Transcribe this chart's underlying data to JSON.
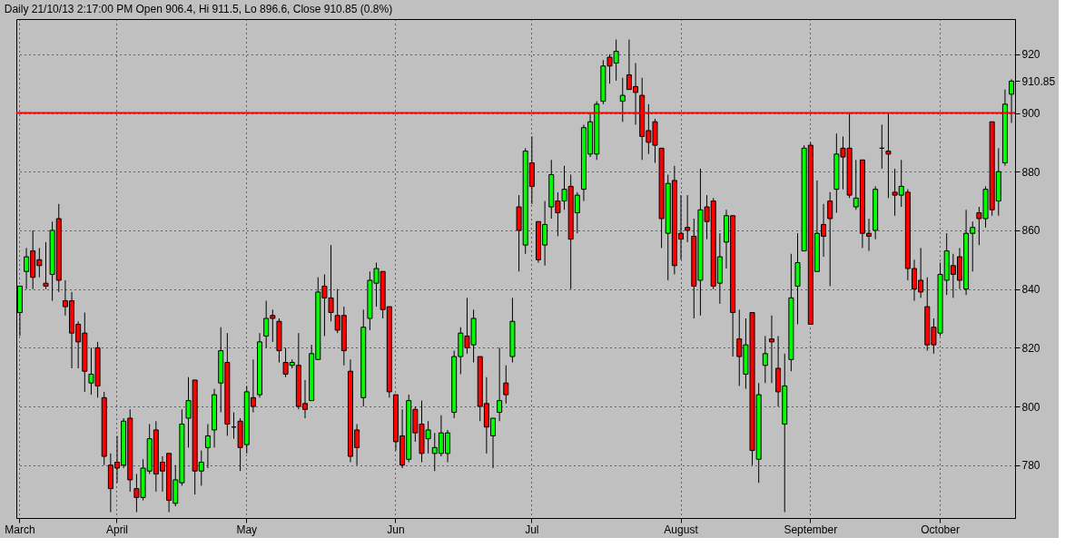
{
  "chart_data": {
    "type": "candlestick",
    "title": "Daily 21/10/13 2:17:00 PM Open 906.4, Hi 911.5, Lo 896.6, Close 910.85 (0.8%)",
    "categories": [
      "March",
      null,
      null,
      null,
      null,
      null,
      null,
      null,
      null,
      null,
      null,
      null,
      null,
      null,
      null,
      "April",
      null,
      null,
      null,
      null,
      null,
      null,
      null,
      null,
      null,
      null,
      null,
      null,
      null,
      null,
      null,
      null,
      null,
      null,
      null,
      "May",
      null,
      null,
      null,
      null,
      null,
      null,
      null,
      null,
      null,
      null,
      null,
      null,
      null,
      null,
      null,
      null,
      null,
      null,
      null,
      null,
      null,
      null,
      "Jun",
      null,
      null,
      null,
      null,
      null,
      null,
      null,
      null,
      null,
      null,
      null,
      null,
      null,
      null,
      null,
      null,
      null,
      null,
      null,
      null,
      "Jul",
      null,
      null,
      null,
      null,
      null,
      null,
      null,
      null,
      null,
      null,
      null,
      null,
      null,
      null,
      null,
      null,
      null,
      null,
      null,
      null,
      null,
      null,
      "August",
      null,
      null,
      null,
      null,
      null,
      null,
      null,
      null,
      null,
      null,
      null,
      null,
      null,
      null,
      null,
      null,
      null,
      null,
      null,
      "September",
      null,
      null,
      null,
      null,
      null,
      null,
      null,
      null,
      null,
      null,
      null,
      null,
      null,
      null,
      null,
      null,
      null,
      null,
      null,
      "October",
      null,
      null,
      null,
      null,
      null,
      null,
      null,
      null,
      null,
      null,
      null
    ],
    "ohlc": [
      [
        832,
        841,
        824,
        841
      ],
      [
        846,
        854,
        840,
        851
      ],
      [
        853,
        860,
        840,
        844
      ],
      [
        850,
        854,
        844,
        848
      ],
      [
        842,
        856,
        840,
        841
      ],
      [
        845,
        863,
        836,
        860
      ],
      [
        864,
        869,
        839,
        843
      ],
      [
        836,
        843,
        831,
        834
      ],
      [
        836,
        839,
        813,
        825
      ],
      [
        828,
        829,
        813,
        822
      ],
      [
        825,
        832,
        805,
        812
      ],
      [
        808,
        820,
        804,
        811
      ],
      [
        820,
        822,
        803,
        807
      ],
      [
        803,
        805,
        780,
        783
      ],
      [
        780,
        784,
        764,
        772
      ],
      [
        781,
        790,
        774,
        779
      ],
      [
        780,
        796,
        779,
        795
      ],
      [
        796,
        799,
        771,
        775
      ],
      [
        772,
        777,
        764,
        769
      ],
      [
        769,
        782,
        768,
        779
      ],
      [
        778,
        794,
        777,
        789
      ],
      [
        792,
        795,
        771,
        777
      ],
      [
        781,
        783,
        771,
        778
      ],
      [
        784,
        784,
        764,
        768
      ],
      [
        767,
        780,
        766,
        775
      ],
      [
        774,
        799,
        773,
        794
      ],
      [
        796,
        810,
        786,
        802
      ],
      [
        809,
        809,
        770,
        778
      ],
      [
        778,
        785,
        773,
        781
      ],
      [
        786,
        794,
        779,
        790
      ],
      [
        792,
        806,
        786,
        804
      ],
      [
        808,
        827,
        798,
        819
      ],
      [
        815,
        825,
        790,
        794
      ],
      [
        793,
        798,
        789,
        793
      ],
      [
        795,
        796,
        778,
        786
      ],
      [
        787,
        807,
        784,
        805
      ],
      [
        803,
        816,
        798,
        800
      ],
      [
        804,
        825,
        803,
        822
      ],
      [
        824,
        836,
        820,
        830
      ],
      [
        831,
        833,
        822,
        830
      ],
      [
        829,
        830,
        815,
        819
      ],
      [
        815,
        820,
        810,
        811
      ],
      [
        814,
        816,
        813,
        815
      ],
      [
        814,
        825,
        799,
        800
      ],
      [
        801,
        809,
        796,
        799
      ],
      [
        802,
        821,
        802,
        818
      ],
      [
        816,
        844,
        816,
        839
      ],
      [
        841,
        845,
        824,
        837
      ],
      [
        837,
        855,
        829,
        832
      ],
      [
        831,
        840,
        825,
        826
      ],
      [
        831,
        834,
        814,
        819
      ],
      [
        812,
        816,
        781,
        783
      ],
      [
        792,
        794,
        780,
        786
      ],
      [
        803,
        833,
        800,
        827
      ],
      [
        830,
        846,
        826,
        843
      ],
      [
        842,
        849,
        834,
        847
      ],
      [
        846,
        846,
        830,
        833
      ],
      [
        834,
        834,
        803,
        805
      ],
      [
        804,
        804,
        785,
        788
      ],
      [
        790,
        799,
        779,
        780
      ],
      [
        782,
        804,
        781,
        802
      ],
      [
        799,
        800,
        788,
        791
      ],
      [
        794,
        802,
        781,
        784
      ],
      [
        789,
        795,
        784,
        792
      ],
      [
        784,
        791,
        778,
        786
      ],
      [
        784,
        797,
        783,
        791
      ],
      [
        784,
        792,
        781,
        791
      ],
      [
        798,
        819,
        796,
        817
      ],
      [
        817,
        827,
        811,
        825
      ],
      [
        824,
        837,
        818,
        820
      ],
      [
        821,
        833,
        815,
        830
      ],
      [
        817,
        817,
        795,
        800
      ],
      [
        801,
        810,
        784,
        793
      ],
      [
        790,
        796,
        779,
        796
      ],
      [
        798,
        820,
        795,
        802
      ],
      [
        808,
        814,
        801,
        804
      ],
      [
        817,
        837,
        815,
        829
      ],
      [
        868,
        872,
        846,
        860
      ],
      [
        855,
        888,
        852,
        887
      ],
      [
        883,
        892,
        869,
        875
      ],
      [
        863,
        863,
        849,
        850
      ],
      [
        855,
        870,
        848,
        862
      ],
      [
        868,
        884,
        864,
        879
      ],
      [
        870,
        873,
        858,
        866
      ],
      [
        870,
        882,
        867,
        874
      ],
      [
        875,
        879,
        840,
        857
      ],
      [
        866,
        873,
        859,
        872
      ],
      [
        874,
        896,
        870,
        895
      ],
      [
        886,
        900,
        885,
        897
      ],
      [
        886,
        904,
        884,
        903
      ],
      [
        904,
        918,
        903,
        916
      ],
      [
        919,
        920,
        910,
        916
      ],
      [
        917,
        925,
        911,
        921
      ],
      [
        904,
        912,
        897,
        906
      ],
      [
        913,
        925,
        908,
        908
      ],
      [
        909,
        917,
        896,
        907
      ],
      [
        906,
        912,
        884,
        892
      ],
      [
        894,
        903,
        886,
        890
      ],
      [
        897,
        898,
        883,
        889
      ],
      [
        888,
        888,
        854,
        864
      ],
      [
        859,
        879,
        843,
        876
      ],
      [
        877,
        882,
        845,
        848
      ],
      [
        859,
        872,
        850,
        857
      ],
      [
        861,
        872,
        856,
        860
      ],
      [
        858,
        864,
        830,
        841
      ],
      [
        843,
        881,
        831,
        867
      ],
      [
        868,
        872,
        857,
        863
      ],
      [
        870,
        871,
        840,
        841
      ],
      [
        842,
        859,
        835,
        851
      ],
      [
        856,
        867,
        847,
        865
      ],
      [
        865,
        865,
        817,
        832
      ],
      [
        823,
        833,
        807,
        817
      ],
      [
        811,
        830,
        806,
        821
      ],
      [
        832,
        832,
        780,
        785
      ],
      [
        782,
        808,
        774,
        804
      ],
      [
        814,
        824,
        808,
        818
      ],
      [
        823,
        831,
        808,
        822
      ],
      [
        813,
        824,
        800,
        805
      ],
      [
        794,
        818,
        764,
        807
      ],
      [
        816,
        852,
        812,
        837
      ],
      [
        841,
        859,
        828,
        849
      ],
      [
        853,
        889,
        853,
        888
      ],
      [
        889,
        890,
        828,
        828
      ],
      [
        846,
        877,
        846,
        859
      ],
      [
        862,
        869,
        851,
        858
      ],
      [
        870,
        873,
        841,
        864
      ],
      [
        874,
        893,
        866,
        886
      ],
      [
        888,
        892,
        874,
        885
      ],
      [
        888,
        900,
        871,
        872
      ],
      [
        868,
        884,
        867,
        871
      ],
      [
        884,
        884,
        854,
        859
      ],
      [
        859,
        864,
        853,
        858
      ],
      [
        860,
        875,
        857,
        874
      ],
      [
        888,
        896,
        881,
        888
      ],
      [
        887,
        900,
        871,
        886
      ],
      [
        873,
        881,
        865,
        872
      ],
      [
        872,
        884,
        868,
        875
      ],
      [
        873,
        874,
        843,
        847
      ],
      [
        847,
        850,
        836,
        840
      ],
      [
        843,
        854,
        837,
        839
      ],
      [
        834,
        844,
        819,
        821
      ],
      [
        827,
        830,
        818,
        821
      ],
      [
        825,
        849,
        824,
        845
      ],
      [
        843,
        859,
        838,
        853
      ],
      [
        848,
        852,
        837,
        845
      ],
      [
        851,
        854,
        840,
        843
      ],
      [
        840,
        867,
        838,
        859
      ],
      [
        859,
        863,
        846,
        861
      ],
      [
        866,
        868,
        855,
        864
      ],
      [
        864,
        875,
        861,
        874
      ],
      [
        897,
        897,
        865,
        867
      ],
      [
        870,
        888,
        865,
        880
      ],
      [
        883,
        908,
        882,
        903
      ],
      [
        906.4,
        911.5,
        896.6,
        910.85
      ]
    ],
    "colors": [
      "#00ff00",
      "#00ff00",
      "#ff0000",
      "#ff0000",
      "#ff0000",
      "#00ff00",
      "#ff0000",
      "#ff0000",
      "#ff0000",
      "#ff0000",
      "#ff0000",
      "#00ff00",
      "#ff0000",
      "#ff0000",
      "#ff0000",
      "#ff0000",
      "#00ff00",
      "#ff0000",
      "#ff0000",
      "#00ff00",
      "#00ff00",
      "#ff0000",
      "#ff0000",
      "#ff0000",
      "#00ff00",
      "#00ff00",
      "#00ff00",
      "#ff0000",
      "#00ff00",
      "#00ff00",
      "#00ff00",
      "#00ff00",
      "#ff0000",
      "#000000",
      "#ff0000",
      "#00ff00",
      "#ff0000",
      "#00ff00",
      "#00ff00",
      "#ff0000",
      "#ff0000",
      "#ff0000",
      "#00ff00",
      "#ff0000",
      "#ff0000",
      "#00ff00",
      "#00ff00",
      "#ff0000",
      "#ff0000",
      "#ff0000",
      "#ff0000",
      "#ff0000",
      "#ff0000",
      "#00ff00",
      "#00ff00",
      "#00ff00",
      "#ff0000",
      "#ff0000",
      "#ff0000",
      "#ff0000",
      "#00ff00",
      "#ff0000",
      "#ff0000",
      "#00ff00",
      "#00ff00",
      "#00ff00",
      "#00ff00",
      "#00ff00",
      "#00ff00",
      "#ff0000",
      "#00ff00",
      "#ff0000",
      "#ff0000",
      "#00ff00",
      "#00ff00",
      "#ff0000",
      "#00ff00",
      "#ff0000",
      "#00ff00",
      "#ff0000",
      "#ff0000",
      "#00ff00",
      "#00ff00",
      "#ff0000",
      "#00ff00",
      "#ff0000",
      "#00ff00",
      "#00ff00",
      "#00ff00",
      "#00ff00",
      "#00ff00",
      "#ff0000",
      "#00ff00",
      "#00ff00",
      "#ff0000",
      "#ff0000",
      "#ff0000",
      "#ff0000",
      "#ff0000",
      "#ff0000",
      "#00ff00",
      "#ff0000",
      "#ff0000",
      "#ff0000",
      "#ff0000",
      "#00ff00",
      "#ff0000",
      "#ff0000",
      "#00ff00",
      "#00ff00",
      "#ff0000",
      "#ff0000",
      "#00ff00",
      "#ff0000",
      "#00ff00",
      "#00ff00",
      "#ff0000",
      "#ff0000",
      "#00ff00",
      "#00ff00",
      "#00ff00",
      "#00ff00",
      "#ff0000",
      "#00ff00",
      "#ff0000",
      "#ff0000",
      "#00ff00",
      "#ff0000",
      "#ff0000",
      "#00ff00",
      "#ff0000",
      "#ff0000",
      "#00ff00",
      "#000000",
      "#ff0000",
      "#ff0000",
      "#00ff00",
      "#ff0000",
      "#ff0000",
      "#ff0000",
      "#ff0000",
      "#ff0000",
      "#00ff00",
      "#00ff00",
      "#ff0000",
      "#ff0000",
      "#00ff00",
      "#00ff00",
      "#ff0000",
      "#00ff00",
      "#ff0000",
      "#00ff00",
      "#00ff00",
      "#00ff00"
    ],
    "ylim": [
      762,
      932
    ],
    "yticks": [
      780,
      800,
      820,
      840,
      860,
      880,
      900,
      {
        "value": 910.85,
        "label": "910.85"
      },
      920
    ],
    "grid": true,
    "ref_lines": [
      {
        "axis": "y",
        "value": 900,
        "color": "#ff0000"
      }
    ]
  }
}
